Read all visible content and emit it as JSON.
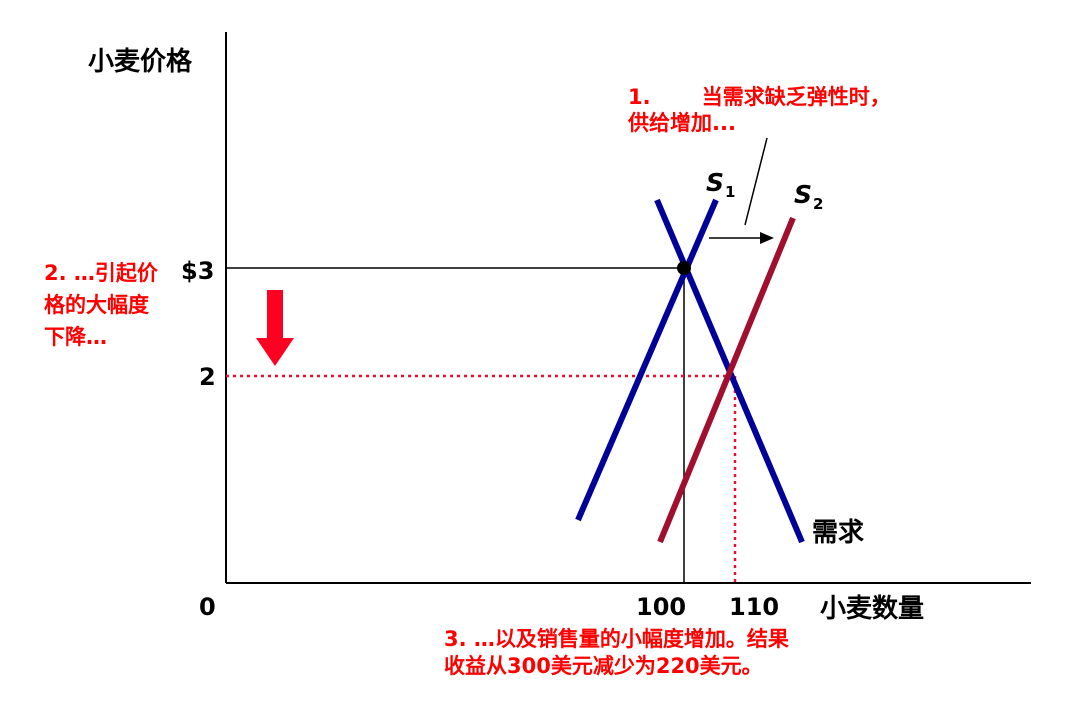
{
  "axes": {
    "y_label": "小麦价格",
    "x_label": "小麦数量",
    "origin": "0",
    "y_ticks": [
      "$3",
      "2"
    ],
    "x_ticks": [
      "100",
      "110"
    ]
  },
  "curves": {
    "s1": {
      "letter": "S",
      "subscript": "1"
    },
    "s2": {
      "letter": "S",
      "subscript": "2"
    },
    "demand": "需求"
  },
  "annotations": [
    {
      "lines": [
        "1.       当需求缺乏弹性时，",
        "供给增加..."
      ]
    },
    {
      "lines": [
        "2. …引起价",
        "格的大幅度",
        "下降…"
      ]
    },
    {
      "lines": [
        "3. …以及销售量的小幅度增加。结果",
        "收益从300美元减少为220美元。"
      ]
    }
  ]
}
